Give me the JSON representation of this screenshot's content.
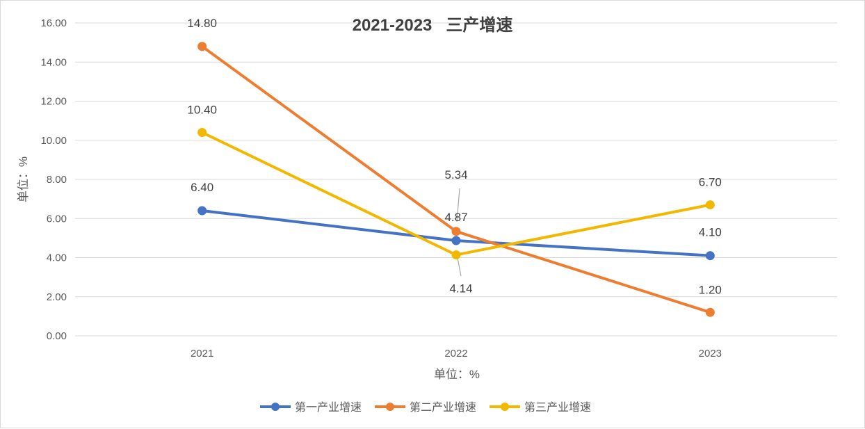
{
  "chart_data": {
    "type": "line",
    "title": "2021-2023   三产增速",
    "xlabel": "单位：%",
    "ylabel": "单位：%",
    "categories": [
      "2021",
      "2022",
      "2023"
    ],
    "ylim": [
      0,
      16
    ],
    "yticks": [
      "0.00",
      "2.00",
      "4.00",
      "6.00",
      "8.00",
      "10.00",
      "12.00",
      "14.00",
      "16.00"
    ],
    "grid": true,
    "legend_position": "bottom",
    "series": [
      {
        "name": "第一产业增速",
        "values": [
          6.4,
          4.87,
          4.1
        ],
        "labels": [
          "6.40",
          "4.87",
          "4.10"
        ],
        "color": "#4472C4"
      },
      {
        "name": "第二产业增速",
        "values": [
          14.8,
          5.34,
          1.2
        ],
        "labels": [
          "14.80",
          "5.34",
          "1.20"
        ],
        "color": "#ED7D31"
      },
      {
        "name": "第三产业增速",
        "values": [
          10.4,
          4.14,
          6.7
        ],
        "labels": [
          "10.40",
          "4.14",
          "6.70"
        ],
        "color": "#F2B800"
      }
    ]
  }
}
